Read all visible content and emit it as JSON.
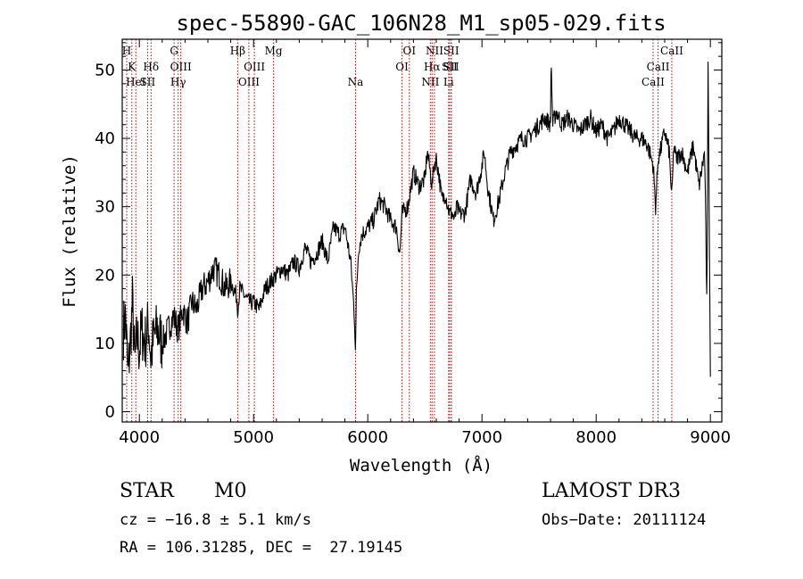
{
  "chart_data": {
    "type": "line",
    "title": "spec-55890-GAC_106N28_M1_sp05-029.fits",
    "xlabel": "Wavelength (Å)",
    "ylabel": "Flux (relative)",
    "xlim": [
      3850,
      9100
    ],
    "ylim": [
      -1.5,
      54.5
    ],
    "xticks": [
      4000,
      5000,
      6000,
      7000,
      8000,
      9000
    ],
    "yticks": [
      0,
      10,
      20,
      30,
      40,
      50
    ],
    "series": [
      {
        "name": "spectrum",
        "x": [
          3860,
          3880,
          3900,
          3920,
          3940,
          3960,
          3980,
          4000,
          4020,
          4050,
          4080,
          4100,
          4130,
          4160,
          4200,
          4250,
          4300,
          4340,
          4380,
          4420,
          4460,
          4500,
          4550,
          4600,
          4650,
          4700,
          4750,
          4800,
          4850,
          4861,
          4880,
          4920,
          4960,
          5000,
          5050,
          5100,
          5150,
          5200,
          5250,
          5300,
          5350,
          5400,
          5450,
          5500,
          5550,
          5600,
          5650,
          5700,
          5750,
          5800,
          5850,
          5880,
          5893,
          5900,
          5920,
          5950,
          6000,
          6050,
          6100,
          6150,
          6200,
          6250,
          6280,
          6300,
          6350,
          6400,
          6450,
          6500,
          6520,
          6540,
          6563,
          6580,
          6600,
          6620,
          6650,
          6680,
          6700,
          6720,
          6740,
          6760,
          6780,
          6800,
          6850,
          6900,
          6950,
          7000,
          7020,
          7050,
          7100,
          7150,
          7200,
          7250,
          7300,
          7350,
          7400,
          7450,
          7500,
          7550,
          7600,
          7605,
          7620,
          7650,
          7700,
          7750,
          7800,
          7850,
          7900,
          7950,
          8000,
          8050,
          8100,
          8150,
          8200,
          8250,
          8300,
          8350,
          8400,
          8450,
          8500,
          8520,
          8542,
          8560,
          8600,
          8640,
          8662,
          8680,
          8700,
          8750,
          8800,
          8850,
          8900,
          8950,
          8970,
          8980,
          9000
        ],
        "y": [
          12,
          14,
          5,
          10,
          16,
          7,
          11,
          9,
          12,
          10,
          13,
          8,
          11,
          12,
          10,
          12,
          14,
          12,
          15,
          13,
          16,
          15,
          18,
          19,
          21,
          20,
          18,
          19,
          17,
          15,
          18,
          17,
          16,
          16,
          15,
          18,
          19,
          20,
          21,
          20,
          22,
          21,
          24,
          22,
          23,
          25,
          22,
          27,
          26,
          27,
          22,
          15,
          9,
          17,
          24,
          26,
          27,
          28,
          31,
          30,
          28,
          27,
          23,
          29,
          30,
          35,
          33,
          34,
          38,
          36,
          33,
          36,
          37,
          35,
          31,
          32,
          30,
          29,
          29,
          28,
          30,
          29,
          29,
          34,
          32,
          36,
          38,
          33,
          28,
          31,
          35,
          38,
          39,
          40,
          40,
          41,
          42,
          43,
          42,
          52,
          42,
          44,
          42,
          43,
          42,
          41,
          42,
          43,
          41,
          42,
          40,
          41,
          43,
          42,
          41,
          40,
          40,
          39,
          36,
          30,
          37,
          38,
          41,
          38,
          31,
          39,
          37,
          38,
          35,
          39,
          33,
          38,
          14,
          52,
          4
        ],
        "color": "#000000"
      }
    ],
    "lines": [
      {
        "wavelength": 3889,
        "labels": [
          {
            "text": "H",
            "row": 0
          }
        ]
      },
      {
        "wavelength": 3934,
        "labels": [
          {
            "text": "K",
            "row": 1
          }
        ]
      },
      {
        "wavelength": 3969,
        "labels": [
          {
            "text": "HeI",
            "row": 2
          }
        ]
      },
      {
        "wavelength": 4072,
        "labels": [
          {
            "text": "SII",
            "row": 2
          }
        ]
      },
      {
        "wavelength": 4102,
        "labels": [
          {
            "text": "Hδ",
            "row": 1
          }
        ]
      },
      {
        "wavelength": 4304,
        "labels": [
          {
            "text": "G",
            "row": 0
          }
        ]
      },
      {
        "wavelength": 4340,
        "labels": [
          {
            "text": "Hγ",
            "row": 2
          }
        ]
      },
      {
        "wavelength": 4363,
        "labels": [
          {
            "text": "OIII",
            "row": 1
          }
        ]
      },
      {
        "wavelength": 4861,
        "labels": [
          {
            "text": "Hβ",
            "row": 0
          }
        ]
      },
      {
        "wavelength": 4959,
        "labels": [
          {
            "text": "OIII",
            "row": 2
          }
        ]
      },
      {
        "wavelength": 5007,
        "labels": [
          {
            "text": "OIII",
            "row": 1
          }
        ]
      },
      {
        "wavelength": 5175,
        "labels": [
          {
            "text": "Mg",
            "row": 0
          }
        ]
      },
      {
        "wavelength": 5893,
        "labels": [
          {
            "text": "Na",
            "row": 2
          }
        ]
      },
      {
        "wavelength": 6300,
        "labels": [
          {
            "text": "OI",
            "row": 1
          }
        ]
      },
      {
        "wavelength": 6364,
        "labels": [
          {
            "text": "OI",
            "row": 0
          }
        ]
      },
      {
        "wavelength": 6548,
        "labels": [
          {
            "text": "NII",
            "row": 2
          }
        ]
      },
      {
        "wavelength": 6563,
        "labels": [
          {
            "text": "Hα",
            "row": 1
          }
        ]
      },
      {
        "wavelength": 6584,
        "labels": [
          {
            "text": "NII",
            "row": 0
          }
        ]
      },
      {
        "wavelength": 6708,
        "labels": [
          {
            "text": "Li",
            "row": 2
          }
        ]
      },
      {
        "wavelength": 6716,
        "labels": [
          {
            "text": "SII",
            "row": 1
          }
        ]
      },
      {
        "wavelength": 6731,
        "labels": [
          {
            "text": "SII",
            "row": 0
          }
        ]
      },
      {
        "wavelength": 6731,
        "labels": [
          {
            "text": "SII",
            "row": 1
          }
        ]
      },
      {
        "wavelength": 8498,
        "labels": [
          {
            "text": "CaII",
            "row": 2
          }
        ]
      },
      {
        "wavelength": 8542,
        "labels": [
          {
            "text": "CaII",
            "row": 1
          }
        ]
      },
      {
        "wavelength": 8662,
        "labels": [
          {
            "text": "CaII",
            "row": 0
          }
        ]
      }
    ],
    "line_color": "#cc0000"
  },
  "info": {
    "object_class": "STAR",
    "subclass": "M0",
    "survey": "LAMOST DR3",
    "cz": "cz = −16.8 ± 5.1 km/s",
    "obs_date": "Obs−Date: 20111124",
    "radec": "RA = 106.31285, DEC =  27.19145"
  }
}
